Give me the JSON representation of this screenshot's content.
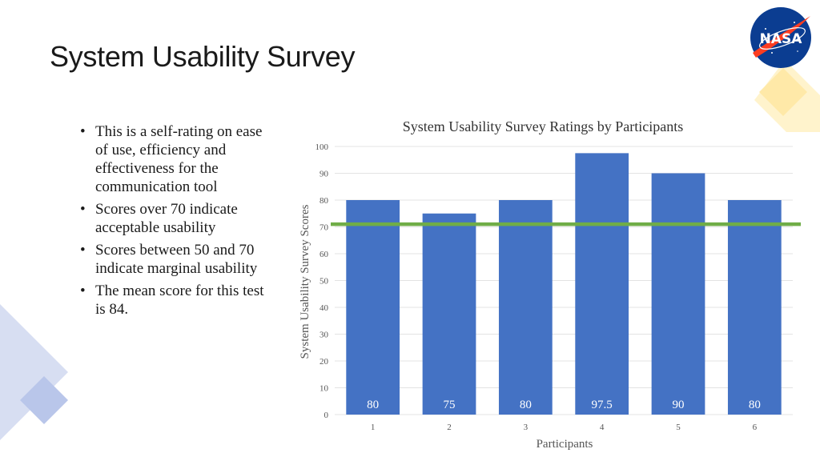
{
  "slide": {
    "title": "System Usability Survey",
    "bullets": [
      "This is a self-rating on ease of use, efficiency and effectiveness for the communication tool",
      "Scores over 70 indicate acceptable usability",
      "Scores between 50 and 70 indicate marginal usability",
      "The mean score for this test is 84."
    ],
    "logo_text": "NASA"
  },
  "colors": {
    "bar": "#4472c4",
    "threshold_line": "#70ad47",
    "deco_yellow": "#fff2c8",
    "deco_blue": "#c9d3ee",
    "logo_blue": "#0b3d91",
    "logo_red": "#fc3d21"
  },
  "chart_data": {
    "type": "bar",
    "title": "System Usability Survey Ratings by Participants",
    "xlabel": "Participants",
    "ylabel": "System Usability Survey Scores",
    "categories": [
      "1",
      "2",
      "3",
      "4",
      "5",
      "6"
    ],
    "values": [
      80,
      75,
      80,
      97.5,
      90,
      80
    ],
    "data_labels": [
      "80",
      "75",
      "80",
      "97.5",
      "90",
      "80"
    ],
    "ylim": [
      0,
      100
    ],
    "yticks": [
      0,
      10,
      20,
      30,
      40,
      50,
      60,
      70,
      80,
      90,
      100
    ],
    "threshold": 71,
    "grid": true,
    "legend": "none"
  }
}
